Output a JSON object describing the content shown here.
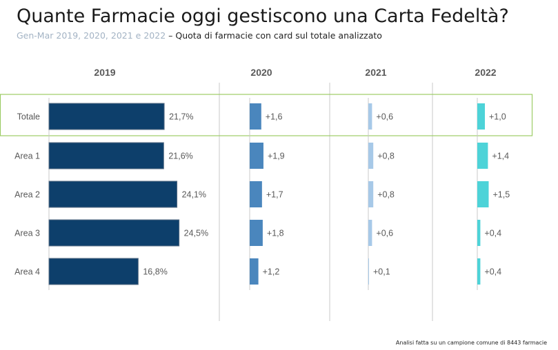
{
  "title": "Quante Farmacie oggi gestiscono una Carta Fedeltà?",
  "subtitle_years": "Gen-Mar 2019, 2020, 2021 e 2022",
  "subtitle_rest": " – Quota di farmacie con card sul totale analizzato",
  "footnote": "Analisi fatta su un campione comune di 8443 farmacie",
  "colors": {
    "2019": "#0d3f6b",
    "2020": "#4a86bd",
    "2021": "#a7c9e8",
    "2022": "#4dd3d8",
    "highlight_border": "#9ccc65",
    "axis": "#c8c8c8"
  },
  "chart_data": {
    "type": "bar",
    "orientation": "horizontal",
    "categories": [
      "Totale",
      "Area 1",
      "Area 2",
      "Area 3",
      "Area 4"
    ],
    "highlighted_category": "Totale",
    "series": [
      {
        "name": "2019",
        "values": [
          21.7,
          21.6,
          24.1,
          24.5,
          16.8
        ],
        "labels": [
          "21,7%",
          "21,6%",
          "24,1%",
          "24,5%",
          "16,8%"
        ]
      },
      {
        "name": "2020",
        "values": [
          1.6,
          1.9,
          1.7,
          1.8,
          1.2
        ],
        "labels": [
          "+1,6",
          "+1,9",
          "+1,7",
          "+1,8",
          "+1,2"
        ]
      },
      {
        "name": "2021",
        "values": [
          0.6,
          0.8,
          0.8,
          0.6,
          0.1
        ],
        "labels": [
          "+0,6",
          "+0,8",
          "+0,8",
          "+0,6",
          "+0,1"
        ]
      },
      {
        "name": "2022",
        "values": [
          1.0,
          1.4,
          1.5,
          0.4,
          0.4
        ],
        "labels": [
          "+1,0",
          "+1,4",
          "+1,5",
          "+0,4",
          "+0,4"
        ]
      }
    ]
  }
}
